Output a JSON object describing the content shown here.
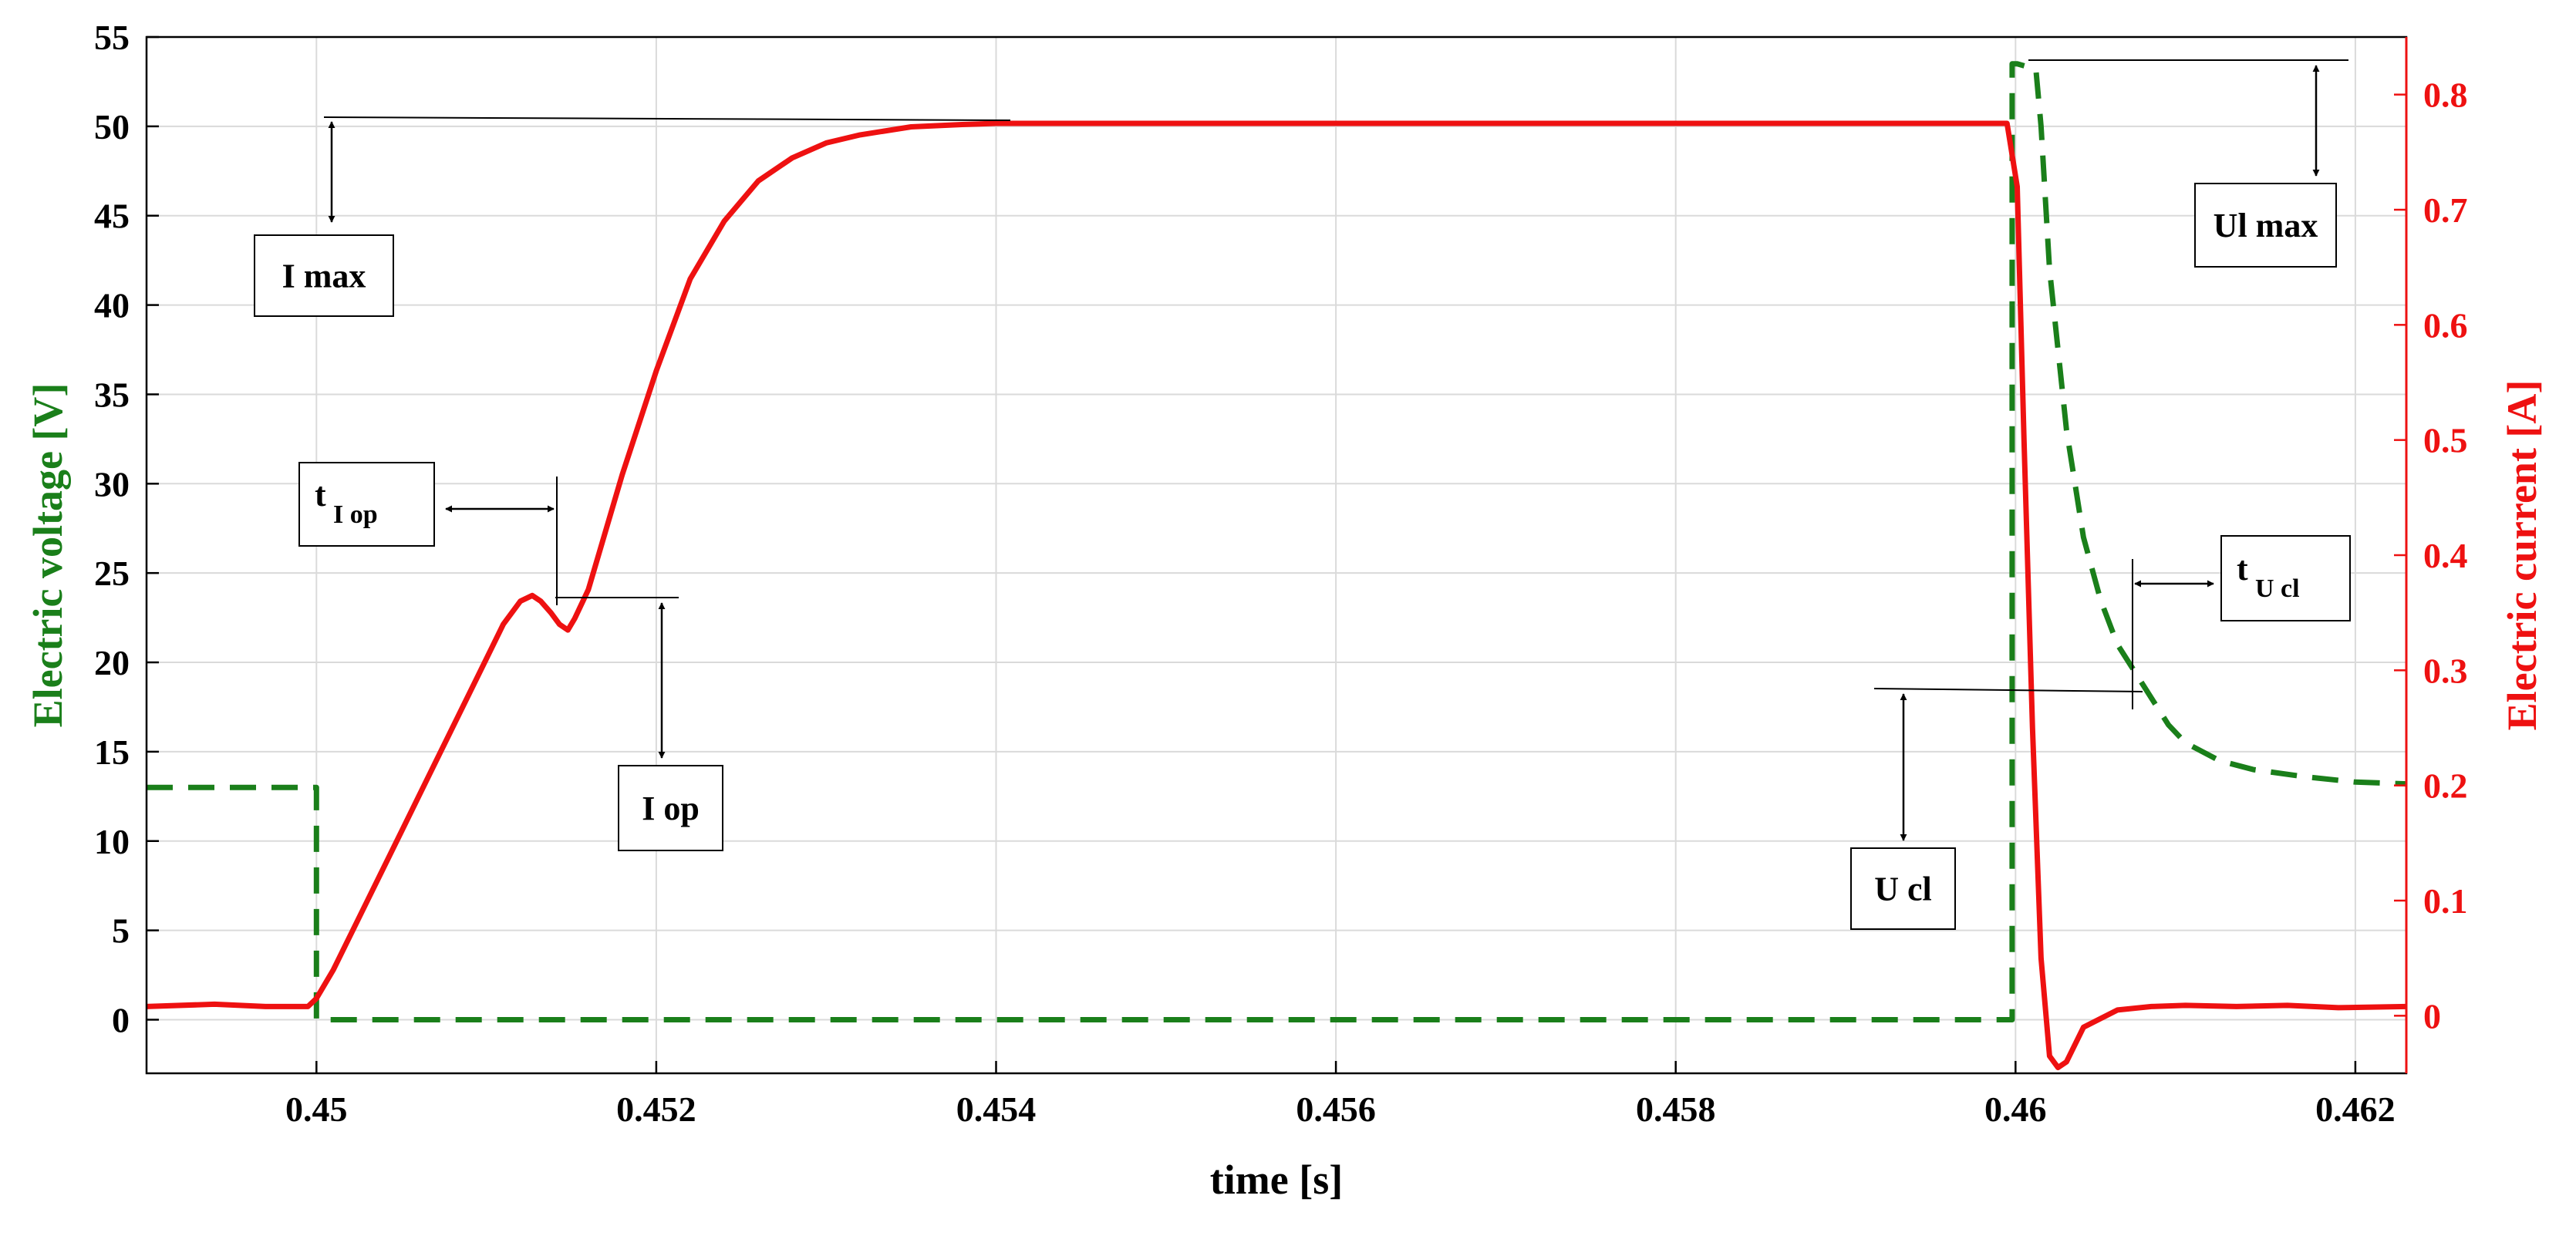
{
  "chart_data": {
    "type": "line",
    "title": "",
    "xlabel": "time [s]",
    "ylabel_left": "Electric voltage [V]",
    "ylabel_right": "Electric current [A]",
    "xlim": [
      0.449,
      0.4623
    ],
    "ylim_left": [
      -3,
      55
    ],
    "ylim_right": [
      -0.05,
      0.85
    ],
    "grid": true,
    "x_ticks": [
      "0.45",
      "0.452",
      "0.454",
      "0.456",
      "0.458",
      "0.46",
      "0.462"
    ],
    "x_tick_values": [
      0.45,
      0.452,
      0.454,
      0.456,
      0.458,
      0.46,
      0.462
    ],
    "y_left_ticks": [
      "0",
      "5",
      "10",
      "15",
      "20",
      "25",
      "30",
      "35",
      "40",
      "45",
      "50",
      "55"
    ],
    "y_left_tick_values": [
      0,
      5,
      10,
      15,
      20,
      25,
      30,
      35,
      40,
      45,
      50,
      55
    ],
    "y_right_ticks": [
      "0",
      "0.1",
      "0.2",
      "0.3",
      "0.4",
      "0.5",
      "0.6",
      "0.7",
      "0.8"
    ],
    "y_right_tick_values": [
      0,
      0.1,
      0.2,
      0.3,
      0.4,
      0.5,
      0.6,
      0.7,
      0.8
    ],
    "colors": {
      "voltage": "#1a7f1a",
      "current": "#ee1111",
      "grid": "#dadada",
      "axis": "#000000"
    },
    "series": [
      {
        "axis": "left",
        "style": "dashed",
        "x": [
          0.449,
          0.44999,
          0.45,
          0.45,
          0.451,
          0.453,
          0.455,
          0.457,
          0.459,
          0.45998,
          0.45998,
          0.46001,
          0.46012,
          0.46015,
          0.4602,
          0.4603,
          0.4604,
          0.4605,
          0.4606,
          0.4607,
          0.4608,
          0.4609,
          0.461,
          0.4612,
          0.4614,
          0.4617,
          0.462,
          0.4623
        ],
        "values": [
          13,
          13,
          13,
          0,
          0,
          0,
          0,
          0,
          0,
          0,
          53.5,
          53.5,
          53.2,
          50,
          42,
          33,
          27,
          23.5,
          21,
          19.5,
          18,
          16.5,
          15.5,
          14.5,
          14,
          13.6,
          13.3,
          13.2
        ]
      },
      {
        "axis": "right",
        "style": "solid",
        "x": [
          0.449,
          0.4494,
          0.4497,
          0.44995,
          0.45,
          0.4501,
          0.4503,
          0.4505,
          0.4507,
          0.4509,
          0.451,
          0.4511,
          0.4512,
          0.45127,
          0.45132,
          0.45138,
          0.45143,
          0.45148,
          0.45152,
          0.4516,
          0.4517,
          0.4518,
          0.452,
          0.4522,
          0.4524,
          0.4526,
          0.4528,
          0.453,
          0.4532,
          0.4535,
          0.4538,
          0.454,
          0.455,
          0.456,
          0.457,
          0.458,
          0.459,
          0.45995,
          0.46001,
          0.46005,
          0.4601,
          0.46015,
          0.4602,
          0.46025,
          0.4603,
          0.4604,
          0.4606,
          0.4608,
          0.461,
          0.4613,
          0.4616,
          0.4619,
          0.4623
        ],
        "values": [
          0.008,
          0.01,
          0.008,
          0.008,
          0.015,
          0.04,
          0.1,
          0.16,
          0.22,
          0.28,
          0.31,
          0.34,
          0.36,
          0.365,
          0.36,
          0.35,
          0.34,
          0.335,
          0.345,
          0.37,
          0.42,
          0.47,
          0.56,
          0.64,
          0.69,
          0.725,
          0.745,
          0.758,
          0.765,
          0.772,
          0.774,
          0.775,
          0.775,
          0.775,
          0.775,
          0.775,
          0.775,
          0.775,
          0.72,
          0.5,
          0.25,
          0.05,
          -0.035,
          -0.045,
          -0.04,
          -0.01,
          0.005,
          0.008,
          0.009,
          0.008,
          0.009,
          0.007,
          0.008
        ]
      }
    ],
    "annotations": [
      {
        "label": "I max"
      },
      {
        "label": "t",
        "subscript": "I op"
      },
      {
        "label": "I op"
      },
      {
        "label": "U cl"
      },
      {
        "label": "t",
        "subscript": "U cl"
      },
      {
        "label": "Ul max"
      }
    ]
  }
}
